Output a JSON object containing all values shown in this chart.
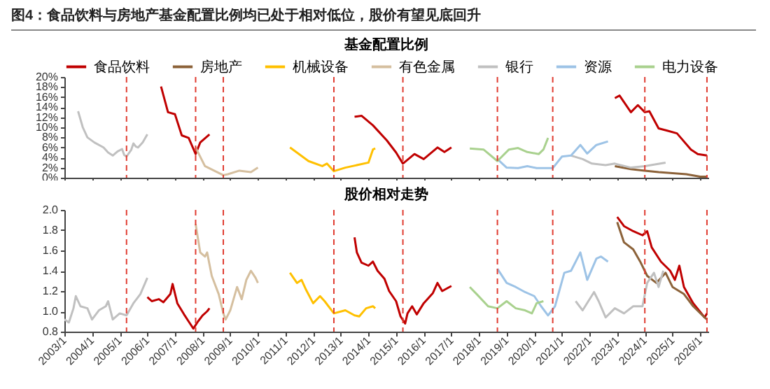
{
  "chart_data": [
    {
      "type": "line",
      "title": "图4：食品饮料与房地产基金配置比例均已处于相对低位，股价有望见底回升",
      "subtitle": "基金配置比例",
      "legend": "top",
      "tick_labels": "y",
      "line_style": "solid",
      "xlim": [
        "2003-01",
        "2026-04-20"
      ],
      "xticks": [
        {
          "value": "2003-01",
          "label": null
        },
        {
          "value": "2004-01",
          "label": null
        },
        {
          "value": "2005-01",
          "label": null
        },
        {
          "value": "2006-01",
          "label": null
        },
        {
          "value": "2007-01",
          "label": null
        },
        {
          "value": "2008-01",
          "label": null
        },
        {
          "value": "2009-01",
          "label": null
        },
        {
          "value": "2010-01",
          "label": null
        },
        {
          "value": "2011-01",
          "label": null
        },
        {
          "value": "2012-01",
          "label": null
        },
        {
          "value": "2013-01",
          "label": null
        },
        {
          "value": "2014-01",
          "label": null
        },
        {
          "value": "2015-01",
          "label": null
        },
        {
          "value": "2016-01",
          "label": null
        },
        {
          "value": "2017-01",
          "label": null
        },
        {
          "value": "2018-01",
          "label": null
        },
        {
          "value": "2019-01",
          "label": null
        },
        {
          "value": "2020-01",
          "label": null
        },
        {
          "value": "2021-01",
          "label": null
        },
        {
          "value": "2022-01",
          "label": null
        },
        {
          "value": "2023-01",
          "label": null
        },
        {
          "value": "2024-01",
          "label": null
        },
        {
          "value": "2025-01",
          "label": null
        },
        {
          "value": "2026-01",
          "label": null
        }
      ],
      "ylim": [
        0,
        20
      ],
      "yticks": [
        {
          "value": 0,
          "label": "0%"
        },
        {
          "value": 2,
          "label": "2%"
        },
        {
          "value": 4,
          "label": "4%"
        },
        {
          "value": 6,
          "label": "6%"
        },
        {
          "value": 8,
          "label": "8%"
        },
        {
          "value": 10,
          "label": "10%"
        },
        {
          "value": 12,
          "label": "12%"
        },
        {
          "value": 14,
          "label": "14%"
        },
        {
          "value": 16,
          "label": "16%"
        },
        {
          "value": 18,
          "label": "18%"
        },
        {
          "value": 20,
          "label": "20%"
        }
      ],
      "ref_lines": [
        {
          "axis": "x",
          "value": "2005-04",
          "color": "#e03c31",
          "line_style": "dashed"
        },
        {
          "axis": "x",
          "value": "2007-10",
          "color": "#e03c31",
          "line_style": "dashed"
        },
        {
          "axis": "x",
          "value": "2008-10",
          "color": "#e03c31",
          "line_style": "dashed"
        },
        {
          "axis": "x",
          "value": "2012-10",
          "color": "#e03c31",
          "line_style": "dashed"
        },
        {
          "axis": "x",
          "value": "2015-04",
          "color": "#e03c31",
          "line_style": "dashed"
        },
        {
          "axis": "x",
          "value": "2018-09",
          "color": "#e03c31",
          "line_style": "dashed"
        },
        {
          "axis": "x",
          "value": "2020-09",
          "color": "#e03c31",
          "line_style": "dashed"
        },
        {
          "axis": "x",
          "value": "2024-01",
          "color": "#e03c31",
          "line_style": "dashed"
        },
        {
          "axis": "x",
          "value": "2026-04",
          "color": "#e03c31",
          "line_style": "dashed"
        }
      ],
      "series": [
        {
          "name": "食品饮料",
          "color": "#c00000",
          "x": [
            "2006-07",
            "2006-10",
            "2007-01",
            "2007-04",
            "2007-07",
            "2007-10",
            "2007-12",
            "2008-04",
            "2010-01",
            "2013-07",
            "2013-10",
            "2014-03",
            "2014-09",
            "2015-01",
            "2015-04",
            "2015-09",
            "2016-01",
            "2016-07",
            "2016-10",
            "2017-01",
            "2020-01",
            "2022-12",
            "2023-02",
            "2023-07",
            "2023-10",
            "2024-01",
            "2024-03",
            "2024-07",
            "2024-11",
            "2025-03",
            "2025-09",
            "2025-12",
            "2026-04"
          ],
          "values": [
            18.1,
            13.0,
            12.6,
            8.4,
            7.9,
            4.7,
            7.0,
            8.6,
            null,
            12.1,
            12.3,
            10.4,
            7.4,
            5.0,
            2.8,
            4.7,
            3.7,
            6.0,
            5.1,
            6.0,
            null,
            15.8,
            16.3,
            13.0,
            14.4,
            13.0,
            13.2,
            9.8,
            9.3,
            8.8,
            5.6,
            4.7,
            4.4
          ]
        },
        {
          "name": "房地产",
          "color": "#8c6239",
          "x": [
            "2022-12",
            "2023-07",
            "2024-01",
            "2024-07",
            "2025-01",
            "2025-07",
            "2026-01",
            "2026-04"
          ],
          "values": [
            2.3,
            1.7,
            1.4,
            1.1,
            0.9,
            0.7,
            0.2,
            0.2
          ]
        },
        {
          "name": "机械设备",
          "color": "#ffc000",
          "x": [
            "2011-03",
            "2011-11",
            "2012-05",
            "2012-07",
            "2012-10",
            "2013-03",
            "2013-09",
            "2014-01",
            "2014-03",
            "2014-04"
          ],
          "values": [
            6.0,
            3.3,
            2.3,
            2.8,
            1.3,
            2.0,
            2.6,
            3.0,
            5.6,
            5.8
          ]
        },
        {
          "name": "有色金属",
          "color": "#d5bf9f",
          "x": [
            "2007-10",
            "2008-02",
            "2008-06",
            "2008-10",
            "2008-12",
            "2009-05",
            "2009-10",
            "2010-01"
          ],
          "values": [
            6.0,
            2.3,
            1.4,
            0.5,
            0.7,
            1.4,
            1.1,
            2.0
          ]
        },
        {
          "name": "银行",
          "color": "#c0c0c0",
          "x": [
            "2003-07",
            "2003-09",
            "2003-11",
            "2004-02",
            "2004-06",
            "2004-08",
            "2004-10",
            "2004-12",
            "2005-02",
            "2005-03",
            "2005-04",
            "2005-06",
            "2005-07",
            "2005-08",
            "2005-09",
            "2005-11",
            "2006-01",
            "2010-01",
            "2021-05",
            "2021-10",
            "2022-02",
            "2022-08",
            "2022-12",
            "2023-07",
            "2024-01",
            "2024-05",
            "2024-10"
          ],
          "values": [
            13.2,
            10.0,
            8.0,
            7.0,
            6.0,
            5.0,
            4.4,
            5.2,
            5.7,
            4.5,
            4.2,
            5.5,
            6.8,
            6.2,
            6.0,
            7.0,
            8.6,
            null,
            4.4,
            3.7,
            2.8,
            2.5,
            2.8,
            2.0,
            2.3,
            2.6,
            3.0
          ]
        },
        {
          "name": "资源",
          "color": "#9dc3e6",
          "x": [
            "2018-09",
            "2019-01",
            "2019-06",
            "2019-10",
            "2020-02",
            "2020-09",
            "2021-01",
            "2021-05",
            "2021-09",
            "2021-12",
            "2022-04",
            "2022-09"
          ],
          "values": [
            3.7,
            2.0,
            1.9,
            2.3,
            1.9,
            1.9,
            4.2,
            4.4,
            6.5,
            4.8,
            6.5,
            7.2
          ]
        },
        {
          "name": "电力设备",
          "color": "#a9d18e",
          "x": [
            "2017-09",
            "2018-03",
            "2018-09",
            "2019-02",
            "2019-06",
            "2019-10",
            "2020-03",
            "2020-05",
            "2020-07"
          ],
          "values": [
            5.8,
            5.6,
            3.3,
            5.6,
            5.9,
            5.1,
            4.7,
            5.6,
            7.9
          ]
        }
      ]
    },
    {
      "type": "line",
      "title": "股价相对走势",
      "line_style": "solid",
      "xlim": [
        "2003-01",
        "2026-04-20"
      ],
      "xticks": [
        {
          "value": "2003-01",
          "label": "2003/1"
        },
        {
          "value": "2004-01",
          "label": "2004/1"
        },
        {
          "value": "2005-01",
          "label": "2005/1"
        },
        {
          "value": "2006-01",
          "label": "2006/1"
        },
        {
          "value": "2007-01",
          "label": "2007/1"
        },
        {
          "value": "2008-01",
          "label": "2008/1"
        },
        {
          "value": "2009-01",
          "label": "2009/1"
        },
        {
          "value": "2010-01",
          "label": "2010/1"
        },
        {
          "value": "2011-01",
          "label": "2011/1"
        },
        {
          "value": "2012-01",
          "label": "2012/1"
        },
        {
          "value": "2013-01",
          "label": "2013/1"
        },
        {
          "value": "2014-01",
          "label": "2014/1"
        },
        {
          "value": "2015-01",
          "label": "2015/1"
        },
        {
          "value": "2016-01",
          "label": "2016/1"
        },
        {
          "value": "2017-01",
          "label": "2017/1"
        },
        {
          "value": "2018-01",
          "label": "2018/1"
        },
        {
          "value": "2019-01",
          "label": "2019/1"
        },
        {
          "value": "2020-01",
          "label": "2020/1"
        },
        {
          "value": "2021-01",
          "label": "2021/1"
        },
        {
          "value": "2022-01",
          "label": "2022/1"
        },
        {
          "value": "2023-01",
          "label": "2023/1"
        },
        {
          "value": "2024-01",
          "label": "2024/1"
        },
        {
          "value": "2025-01",
          "label": "2025/1"
        },
        {
          "value": "2026-01",
          "label": "2026/1"
        }
      ],
      "ylim": [
        0.8,
        2.0
      ],
      "yticks": [
        0.8,
        {
          "value": 1,
          "label": "1.0"
        },
        1.2,
        1.4,
        1.6,
        1.8,
        {
          "value": 2,
          "label": "2.0"
        }
      ],
      "ref_lines": [
        {
          "axis": "x",
          "value": "2005-04",
          "color": "#e03c31",
          "line_style": "dashed"
        },
        {
          "axis": "x",
          "value": "2007-10",
          "color": "#e03c31",
          "line_style": "dashed"
        },
        {
          "axis": "x",
          "value": "2008-10",
          "color": "#e03c31",
          "line_style": "dashed"
        },
        {
          "axis": "x",
          "value": "2012-10",
          "color": "#e03c31",
          "line_style": "dashed"
        },
        {
          "axis": "x",
          "value": "2015-04",
          "color": "#e03c31",
          "line_style": "dashed"
        },
        {
          "axis": "x",
          "value": "2018-09",
          "color": "#e03c31",
          "line_style": "dashed"
        },
        {
          "axis": "x",
          "value": "2020-09",
          "color": "#e03c31",
          "line_style": "dashed"
        },
        {
          "axis": "x",
          "value": "2024-01",
          "color": "#e03c31",
          "line_style": "dashed"
        },
        {
          "axis": "x",
          "value": "2026-04",
          "color": "#e03c31",
          "line_style": "dashed"
        }
      ],
      "series": [
        {
          "color": "#c00000",
          "x": [
            "2006-01",
            "2006-03",
            "2006-06",
            "2006-08",
            "2006-11",
            "2006-12",
            "2007-02",
            "2007-05",
            "2007-07",
            "2007-09",
            "2007-11",
            "2008-01",
            "2008-03",
            "2008-04",
            "2010-01",
            "2013-07",
            "2013-08",
            "2013-10",
            "2014-01",
            "2014-03",
            "2014-05",
            "2014-08",
            "2014-10",
            "2015-01",
            "2015-03",
            "2015-05",
            "2015-06",
            "2015-08",
            "2015-10",
            "2016-01",
            "2016-05",
            "2016-07",
            "2016-09",
            "2017-01",
            "2020-01",
            "2023-01",
            "2023-04",
            "2023-08",
            "2023-12",
            "2024-02",
            "2024-04",
            "2024-08",
            "2024-12",
            "2025-02",
            "2025-04",
            "2025-06",
            "2025-10",
            "2026-03",
            "2026-04"
          ],
          "values": [
            1.14,
            1.1,
            1.12,
            1.09,
            1.17,
            1.27,
            1.08,
            0.97,
            0.9,
            0.83,
            0.9,
            0.96,
            1.0,
            1.03,
            null,
            1.73,
            1.58,
            1.48,
            1.45,
            1.49,
            1.4,
            1.32,
            1.2,
            1.1,
            0.95,
            0.88,
            0.98,
            1.05,
            0.97,
            1.08,
            1.18,
            1.28,
            1.2,
            1.25,
            null,
            1.93,
            1.84,
            1.79,
            1.75,
            1.79,
            1.63,
            1.49,
            1.4,
            1.31,
            1.45,
            1.24,
            1.08,
            0.94,
            0.98
          ]
        },
        {
          "color": "#8c6239",
          "x": [
            "2023-01",
            "2023-04",
            "2023-08",
            "2023-11",
            "2024-02",
            "2024-06",
            "2024-10",
            "2025-01",
            "2025-06",
            "2025-10",
            "2026-03",
            "2026-04"
          ],
          "values": [
            1.88,
            1.68,
            1.61,
            1.49,
            1.35,
            1.28,
            1.38,
            1.24,
            1.17,
            1.05,
            0.94,
            0.92
          ]
        },
        {
          "color": "#ffc000",
          "x": [
            "2011-03",
            "2011-06",
            "2011-08",
            "2011-10",
            "2012-01",
            "2012-04",
            "2012-06",
            "2012-10",
            "2013-03",
            "2013-07",
            "2013-09",
            "2013-12",
            "2014-03",
            "2014-04"
          ],
          "values": [
            1.38,
            1.28,
            1.31,
            1.21,
            1.08,
            1.15,
            1.1,
            0.98,
            1.01,
            0.96,
            0.95,
            1.03,
            1.05,
            1.03
          ]
        },
        {
          "color": "#d5bf9f",
          "x": [
            "2007-10",
            "2007-12",
            "2008-02",
            "2008-03",
            "2008-05",
            "2008-08",
            "2008-10",
            "2008-11",
            "2009-01",
            "2009-04",
            "2009-06",
            "2009-08",
            "2009-10",
            "2009-12",
            "2010-01"
          ],
          "values": [
            1.86,
            1.58,
            1.54,
            1.58,
            1.35,
            1.17,
            0.98,
            0.92,
            1.01,
            1.24,
            1.12,
            1.31,
            1.4,
            1.33,
            1.28
          ]
        },
        {
          "color": "#c0c0c0",
          "x": [
            "2003-01",
            "2003-03",
            "2003-05",
            "2003-06",
            "2003-08",
            "2003-11",
            "2004-01",
            "2004-04",
            "2004-07",
            "2004-08",
            "2004-10",
            "2005-01",
            "2005-04",
            "2005-07",
            "2005-10",
            "2006-01",
            "2010-01",
            "2021-07",
            "2021-10",
            "2022-03",
            "2022-05",
            "2022-08",
            "2022-12",
            "2023-04",
            "2023-08",
            "2023-12",
            "2024-02",
            "2024-05",
            "2024-07",
            "2024-09"
          ],
          "values": [
            0.92,
            0.89,
            1.03,
            1.15,
            1.05,
            1.03,
            0.92,
            1.01,
            1.05,
            1.1,
            0.92,
            0.98,
            0.96,
            1.08,
            1.17,
            1.33,
            null,
            1.1,
            1.01,
            1.19,
            1.1,
            0.94,
            1.03,
            0.98,
            1.05,
            1.05,
            1.28,
            1.38,
            1.24,
            1.4
          ]
        },
        {
          "color": "#9dc3e6",
          "x": [
            "2018-09",
            "2019-01",
            "2019-05",
            "2019-09",
            "2020-01",
            "2020-04",
            "2020-07",
            "2020-10",
            "2021-02",
            "2021-05",
            "2021-09",
            "2021-12",
            "2022-04",
            "2022-06",
            "2022-09"
          ],
          "values": [
            1.42,
            1.28,
            1.24,
            1.19,
            1.15,
            1.05,
            0.96,
            1.05,
            1.38,
            1.4,
            1.58,
            1.31,
            1.52,
            1.54,
            1.49
          ]
        },
        {
          "color": "#a9d18e",
          "x": [
            "2017-09",
            "2017-12",
            "2018-05",
            "2018-09",
            "2019-01",
            "2019-05",
            "2019-09",
            "2019-12",
            "2020-02",
            "2020-05"
          ],
          "values": [
            1.24,
            1.17,
            1.05,
            1.03,
            1.1,
            1.03,
            1.01,
            0.98,
            1.08,
            1.1
          ]
        }
      ]
    }
  ]
}
